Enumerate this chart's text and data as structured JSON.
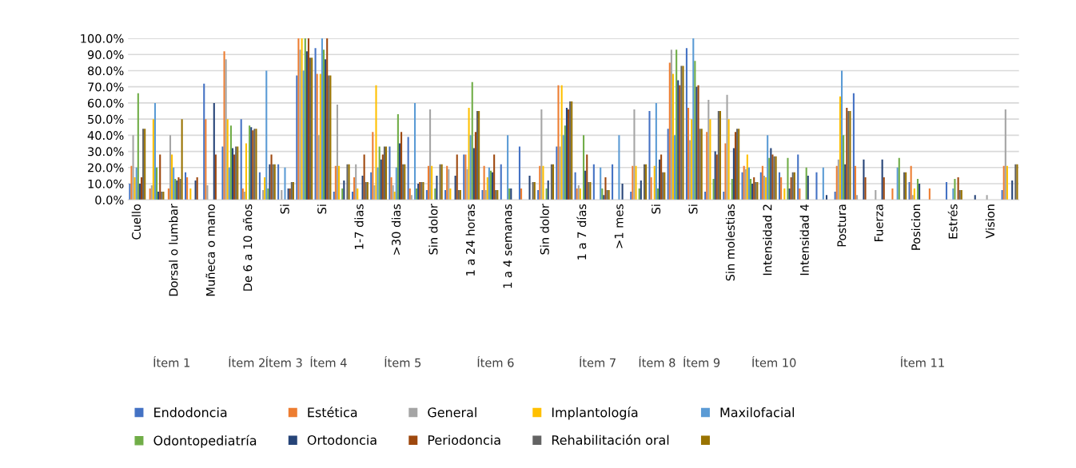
{
  "chart_data": {
    "type": "bar",
    "categories": [
      "Cuello",
      null,
      "Dorsal o lumbar",
      null,
      "Muñeca o mano",
      null,
      "De 6 a 10 años",
      null,
      "Si",
      null,
      "Si",
      null,
      "1-7 dias",
      null,
      ">30 dias",
      null,
      "Sin dolor",
      null,
      "1 a 24 horas",
      null,
      "1 a 4 semanas",
      null,
      "Sin dolor",
      null,
      "1 a 7 días",
      null,
      ">1 mes",
      null,
      "Si",
      null,
      "Si",
      null,
      "Sin molestias",
      null,
      "Intensidad 2",
      null,
      "Intensidad 4",
      null,
      "Postura",
      null,
      "Fuerza",
      null,
      "Posicion",
      null,
      "Estrés",
      null,
      "Vision",
      null
    ],
    "series": [
      {
        "name": "Endodoncia",
        "color": "#4472c4",
        "values": [
          10,
          0,
          0,
          17,
          72,
          33,
          50,
          17,
          22,
          77,
          94,
          5,
          5,
          17,
          33,
          39,
          6,
          6,
          28,
          6,
          22,
          33,
          6,
          33,
          17,
          22,
          22,
          5,
          55,
          44,
          94,
          5,
          5,
          17,
          17,
          17,
          28,
          17,
          5,
          66,
          0,
          0,
          11,
          0,
          11,
          0,
          0,
          6
        ]
      },
      {
        "name": "Estética",
        "color": "#ed7d31",
        "values": [
          21,
          7,
          7,
          14,
          50,
          92,
          7,
          0,
          0,
          100,
          78,
          21,
          14,
          42,
          14,
          7,
          21,
          21,
          28,
          21,
          0,
          7,
          21,
          71,
          7,
          0,
          0,
          21,
          14,
          85,
          57,
          42,
          35,
          21,
          21,
          14,
          7,
          0,
          21,
          21,
          0,
          7,
          21,
          7,
          0,
          0,
          0,
          21
        ]
      },
      {
        "name": "General",
        "color": "#a5a5a5",
        "values": [
          40,
          9,
          40,
          0,
          9,
          87,
          5,
          6,
          6,
          93,
          40,
          59,
          22,
          9,
          9,
          3,
          56,
          19,
          19,
          6,
          0,
          0,
          56,
          33,
          9,
          0,
          0,
          56,
          0,
          93,
          37,
          62,
          65,
          19,
          15,
          0,
          0,
          0,
          25,
          3,
          6,
          0,
          3,
          0,
          0,
          0,
          3,
          56
        ]
      },
      {
        "name": "Implantología",
        "color": "#ffc000",
        "values": [
          14,
          50,
          28,
          7,
          0,
          50,
          35,
          14,
          0,
          100,
          78,
          21,
          7,
          71,
          5,
          0,
          21,
          7,
          57,
          14,
          0,
          0,
          21,
          71,
          7,
          0,
          0,
          21,
          21,
          78,
          50,
          50,
          50,
          28,
          14,
          7,
          0,
          0,
          64,
          0,
          0,
          0,
          7,
          0,
          0,
          0,
          0,
          21
        ]
      },
      {
        "name": "Maxilofacial",
        "color": "#5b9bd5",
        "values": [
          20,
          60,
          20,
          0,
          0,
          20,
          0,
          80,
          20,
          80,
          100,
          0,
          0,
          20,
          20,
          60,
          0,
          0,
          40,
          20,
          40,
          0,
          0,
          40,
          0,
          20,
          40,
          0,
          60,
          40,
          100,
          0,
          0,
          20,
          40,
          0,
          0,
          20,
          80,
          0,
          0,
          20,
          0,
          0,
          7,
          0,
          0,
          0
        ]
      },
      {
        "name": "Odontopediatría",
        "color": "#70ad47",
        "values": [
          66,
          20,
          13,
          0,
          0,
          46,
          46,
          7,
          0,
          100,
          93,
          7,
          0,
          33,
          53,
          7,
          7,
          0,
          73,
          18,
          7,
          0,
          7,
          46,
          40,
          7,
          0,
          7,
          7,
          93,
          86,
          13,
          13,
          13,
          26,
          26,
          20,
          0,
          40,
          0,
          0,
          26,
          13,
          0,
          13,
          0,
          0,
          0
        ]
      },
      {
        "name": "Ortodoncia",
        "color": "#264478",
        "values": [
          10,
          5,
          12,
          12,
          60,
          32,
          45,
          22,
          7,
          92,
          87,
          12,
          15,
          25,
          35,
          10,
          15,
          15,
          32,
          17,
          7,
          15,
          12,
          57,
          18,
          3,
          10,
          12,
          25,
          74,
          70,
          30,
          32,
          10,
          32,
          7,
          15,
          3,
          22,
          25,
          25,
          0,
          10,
          0,
          0,
          3,
          0,
          12
        ]
      },
      {
        "name": "Periodoncia",
        "color": "#9e480e",
        "values": [
          14,
          28,
          14,
          14,
          28,
          28,
          43,
          28,
          7,
          100,
          100,
          0,
          28,
          28,
          42,
          11,
          0,
          28,
          42,
          28,
          0,
          0,
          0,
          56,
          28,
          14,
          0,
          0,
          28,
          71,
          71,
          28,
          42,
          14,
          28,
          14,
          0,
          0,
          57,
          14,
          14,
          0,
          0,
          0,
          14,
          0,
          0,
          0
        ]
      },
      {
        "name": "Rehabilitación oral",
        "color": "#636363",
        "values": [
          44,
          5,
          13,
          0,
          0,
          33,
          44,
          22,
          11,
          88,
          77,
          22,
          11,
          33,
          22,
          11,
          22,
          6,
          55,
          6,
          0,
          11,
          22,
          61,
          11,
          6,
          0,
          22,
          17,
          83,
          44,
          55,
          44,
          11,
          27,
          17,
          0,
          0,
          55,
          0,
          0,
          17,
          0,
          0,
          6,
          0,
          0,
          22
        ]
      },
      {
        "color": "#997300",
        "values": [
          44,
          5,
          50,
          0,
          0,
          33,
          44,
          22,
          11,
          88,
          77,
          22,
          11,
          33,
          22,
          11,
          22,
          6,
          55,
          6,
          0,
          11,
          22,
          61,
          11,
          6,
          0,
          22,
          17,
          83,
          44,
          55,
          44,
          11,
          27,
          17,
          0,
          0,
          55,
          0,
          0,
          17,
          0,
          0,
          6,
          0,
          0,
          22
        ]
      }
    ],
    "ylim": [
      0,
      100
    ],
    "yticks": [
      {
        "value": 0,
        "label": "0.0%"
      },
      {
        "value": 10,
        "label": "10.0%"
      },
      {
        "value": 20,
        "label": "20.0%"
      },
      {
        "value": 30,
        "label": "30.0%"
      },
      {
        "value": 40,
        "label": "40.0%"
      },
      {
        "value": 50,
        "label": "50.0%"
      },
      {
        "value": 60,
        "label": "60.0%"
      },
      {
        "value": 70,
        "label": "70.0%"
      },
      {
        "value": 80,
        "label": "80.0%"
      },
      {
        "value": 90,
        "label": "90.0%"
      },
      {
        "value": 100,
        "label": "100.0%"
      }
    ],
    "grid": "y",
    "legend": "bottom",
    "annotations": [
      "Ítem 1",
      "Ítem 2",
      "Ítem 3",
      "Ítem 4",
      "Ítem 5",
      "Ítem 6",
      "Ítem 7",
      "Ítem 8",
      "Ítem 9",
      "Ítem 10",
      "Ítem 11"
    ]
  }
}
